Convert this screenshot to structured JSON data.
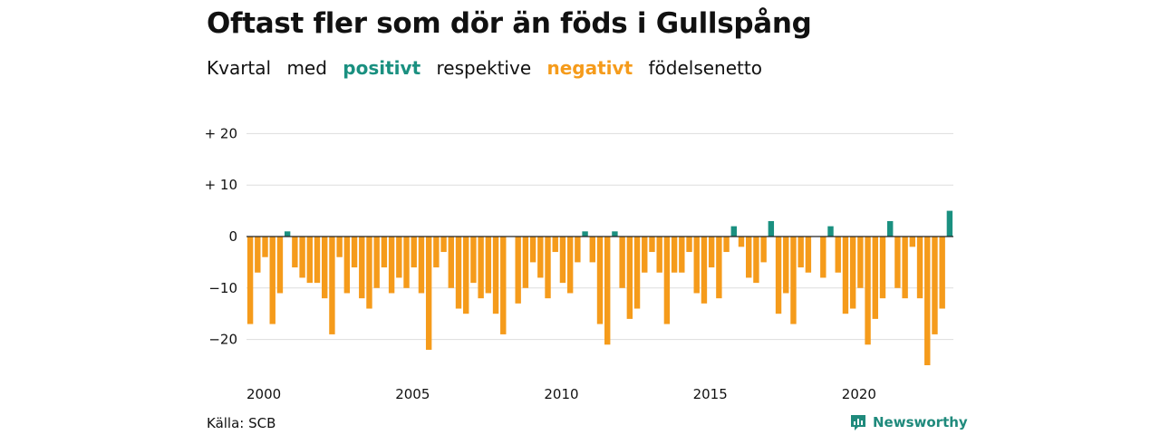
{
  "title": "Oftast fler som dör än föds i Gullspång",
  "subtitle": {
    "part1": "Kvartal",
    "part2": "med",
    "positive": "positivt",
    "part3": "respektive",
    "negative": "negativt",
    "part4": "födelsenetto"
  },
  "source": "Källa: SCB",
  "brand": {
    "name": "Newsworthy",
    "icon": "newsworthy-logo-icon"
  },
  "colors": {
    "positive": "#1a9080",
    "negative": "#f59b1b",
    "grid": "#dddddd",
    "zero": "#222222"
  },
  "chart_data": {
    "type": "bar",
    "title": "Oftast fler som dör än föds i Gullspång",
    "xlabel": "",
    "ylabel": "",
    "ylim": [
      -27,
      21
    ],
    "yticks": [
      20,
      10,
      0,
      -10,
      -20
    ],
    "ytick_labels": [
      "+ 20",
      "+ 10",
      "0",
      "−10",
      "−20"
    ],
    "xticks": [
      2000,
      2005,
      2010,
      2015,
      2020
    ],
    "x_start_year": 2000,
    "periods_per_year": 4,
    "grid": true,
    "values": [
      -17,
      -7,
      -4,
      -17,
      -11,
      1,
      -6,
      -8,
      -9,
      -9,
      -12,
      -19,
      -4,
      -11,
      -6,
      -12,
      -14,
      -10,
      -6,
      -11,
      -8,
      -10,
      -6,
      -11,
      -22,
      -6,
      -3,
      -10,
      -14,
      -15,
      -9,
      -12,
      -11,
      -15,
      -19,
      0,
      -13,
      -10,
      -5,
      -8,
      -12,
      -3,
      -9,
      -11,
      -5,
      1,
      -5,
      -17,
      -21,
      1,
      -10,
      -16,
      -14,
      -7,
      -3,
      -7,
      -17,
      -7,
      -7,
      -3,
      -11,
      -13,
      -6,
      -12,
      -3,
      2,
      -2,
      -8,
      -9,
      -5,
      3,
      -15,
      -11,
      -17,
      -6,
      -7,
      0,
      -8,
      2,
      -7,
      -15,
      -14,
      -10,
      -21,
      -16,
      -12,
      3,
      -10,
      -12,
      -2,
      -12,
      -25,
      -19,
      -14,
      5
    ]
  }
}
